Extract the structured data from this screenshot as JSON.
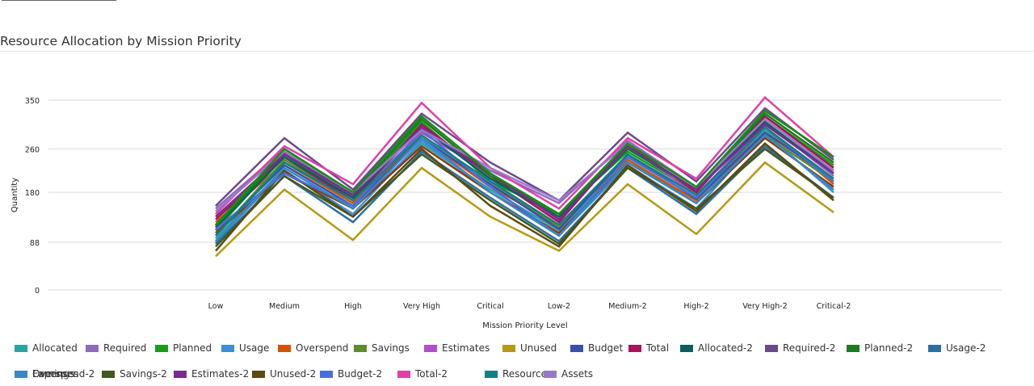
{
  "title": "Resource Allocation by Mission Priority",
  "chart_data": {
    "type": "line",
    "title": "Resource Allocation by Mission Priority",
    "xlabel": "Mission Priority Level",
    "ylabel": "Quantity",
    "categories": [
      "Low",
      "Medium",
      "High",
      "Very High",
      "Critical",
      "Low-2",
      "Medium-2",
      "High-2",
      "Very High-2",
      "Critical-2"
    ],
    "ylim": [
      0,
      360
    ],
    "yticks": [
      0,
      88,
      180,
      260,
      350
    ],
    "grid": true,
    "legend_position": "bottom",
    "series": [
      {
        "name": "Allocated",
        "color": "#2aa3a3",
        "values": [
          95,
          225,
          150,
          270,
          185,
          110,
          240,
          160,
          295,
          200
        ]
      },
      {
        "name": "Required",
        "color": "#8e6bbf",
        "values": [
          150,
          260,
          180,
          295,
          220,
          160,
          275,
          190,
          310,
          210
        ]
      },
      {
        "name": "Planned",
        "color": "#1a9e1a",
        "values": [
          110,
          250,
          170,
          310,
          200,
          140,
          255,
          180,
          320,
          230
        ]
      },
      {
        "name": "Usage",
        "color": "#3c8fd8",
        "values": [
          88,
          220,
          140,
          275,
          180,
          100,
          230,
          150,
          290,
          180
        ]
      },
      {
        "name": "Overspend",
        "color": "#d35400",
        "values": [
          125,
          235,
          160,
          280,
          190,
          120,
          240,
          165,
          300,
          195
        ]
      },
      {
        "name": "Savings",
        "color": "#5f8c2a",
        "values": [
          100,
          240,
          165,
          285,
          200,
          115,
          245,
          170,
          285,
          200
        ]
      },
      {
        "name": "Estimates",
        "color": "#b04fc9",
        "values": [
          120,
          255,
          170,
          290,
          215,
          130,
          265,
          175,
          305,
          220
        ]
      },
      {
        "name": "Unused",
        "color": "#b59a12",
        "values": [
          62,
          185,
          92,
          225,
          135,
          72,
          195,
          103,
          235,
          143
        ]
      },
      {
        "name": "Budget",
        "color": "#3b4fa8",
        "values": [
          105,
          230,
          155,
          280,
          195,
          112,
          250,
          168,
          290,
          205
        ]
      },
      {
        "name": "Total",
        "color": "#a8145a",
        "values": [
          130,
          245,
          165,
          305,
          210,
          125,
          270,
          180,
          320,
          225
        ]
      },
      {
        "name": "Allocated-2",
        "color": "#0f5e5e",
        "values": [
          115,
          245,
          170,
          300,
          205,
          135,
          260,
          185,
          310,
          215
        ]
      },
      {
        "name": "Required-2",
        "color": "#6b4a8a",
        "values": [
          155,
          280,
          185,
          325,
          235,
          165,
          290,
          200,
          335,
          240
        ]
      },
      {
        "name": "Planned-2",
        "color": "#1f7a1f",
        "values": [
          118,
          252,
          175,
          315,
          210,
          140,
          262,
          185,
          325,
          235
        ]
      },
      {
        "name": "Usage-2",
        "color": "#2e6ea3",
        "values": [
          85,
          210,
          125,
          255,
          170,
          90,
          225,
          140,
          265,
          170
        ]
      },
      {
        "name": "Overspend-2",
        "color": "#8c3a12",
        "values": [
          105,
          215,
          150,
          265,
          180,
          105,
          235,
          160,
          280,
          190
        ]
      },
      {
        "name": "Savings-2",
        "color": "#3f5a1e",
        "values": [
          80,
          210,
          135,
          250,
          165,
          85,
          225,
          150,
          260,
          170
        ]
      },
      {
        "name": "Estimates-2",
        "color": "#7a2b8f",
        "values": [
          135,
          250,
          175,
          300,
          215,
          130,
          265,
          185,
          305,
          215
        ]
      },
      {
        "name": "Unused-2",
        "color": "#5c4a10",
        "values": [
          72,
          220,
          135,
          260,
          155,
          80,
          230,
          145,
          270,
          165
        ]
      },
      {
        "name": "Budget-2",
        "color": "#4a6ee0",
        "values": [
          112,
          215,
          155,
          295,
          190,
          100,
          245,
          170,
          300,
          200
        ]
      },
      {
        "name": "Total-2",
        "color": "#e040a8",
        "values": [
          140,
          265,
          195,
          345,
          225,
          150,
          280,
          205,
          355,
          245
        ]
      },
      {
        "name": "Resources",
        "color": "#137f86",
        "values": [
          100,
          235,
          165,
          285,
          200,
          120,
          250,
          175,
          300,
          205
        ]
      },
      {
        "name": "Assets",
        "color": "#9a78c8",
        "values": [
          145,
          255,
          180,
          295,
          225,
          165,
          270,
          190,
          315,
          220
        ]
      },
      {
        "name": "Expenses",
        "color": "#168f16",
        "values": [
          120,
          260,
          180,
          320,
          215,
          140,
          270,
          190,
          330,
          245
        ]
      },
      {
        "name": "Earnings",
        "color": "#3a86c4",
        "values": [
          90,
          225,
          150,
          280,
          180,
          100,
          235,
          160,
          285,
          185
        ]
      }
    ]
  }
}
